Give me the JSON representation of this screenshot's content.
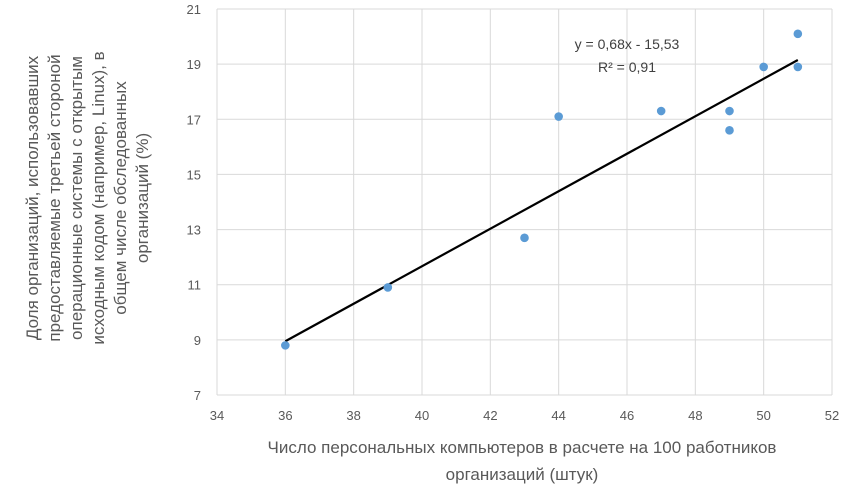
{
  "chart_data": {
    "type": "scatter",
    "xlabel_lines": [
      "Число персональных компьютеров в расчете на 100 работников",
      "организаций  (штук)"
    ],
    "ylabel_lines": [
      "Доля организаций, использовавших",
      "предоставляемые третьей стороной",
      "операционные системы с открытым",
      "исходным кодом (например, Linux), в",
      "общем числе обследованных",
      "организаций (%)"
    ],
    "xlim": [
      34,
      52
    ],
    "ylim": [
      7,
      21
    ],
    "x_ticks": [
      34,
      36,
      38,
      40,
      42,
      44,
      46,
      48,
      50,
      52
    ],
    "y_ticks": [
      7,
      9,
      11,
      13,
      15,
      17,
      19,
      21
    ],
    "grid": "vertical and horizontal",
    "colors": {
      "points": "#5b9bd5",
      "trendline": "#000000",
      "grid": "#d9d9d9"
    },
    "points": [
      {
        "x": 36,
        "y": 8.8
      },
      {
        "x": 39,
        "y": 10.9
      },
      {
        "x": 43,
        "y": 12.7
      },
      {
        "x": 44,
        "y": 17.1
      },
      {
        "x": 47,
        "y": 17.3
      },
      {
        "x": 49,
        "y": 17.3
      },
      {
        "x": 49,
        "y": 16.6
      },
      {
        "x": 50,
        "y": 18.9
      },
      {
        "x": 51,
        "y": 18.9
      },
      {
        "x": 51,
        "y": 20.1
      }
    ],
    "trendline": {
      "slope": 0.68,
      "intercept": -15.53,
      "x_from": 36,
      "x_to": 51
    },
    "equation_text": "y = 0,68x - 15,53",
    "r2_text": "R² = 0,91"
  }
}
